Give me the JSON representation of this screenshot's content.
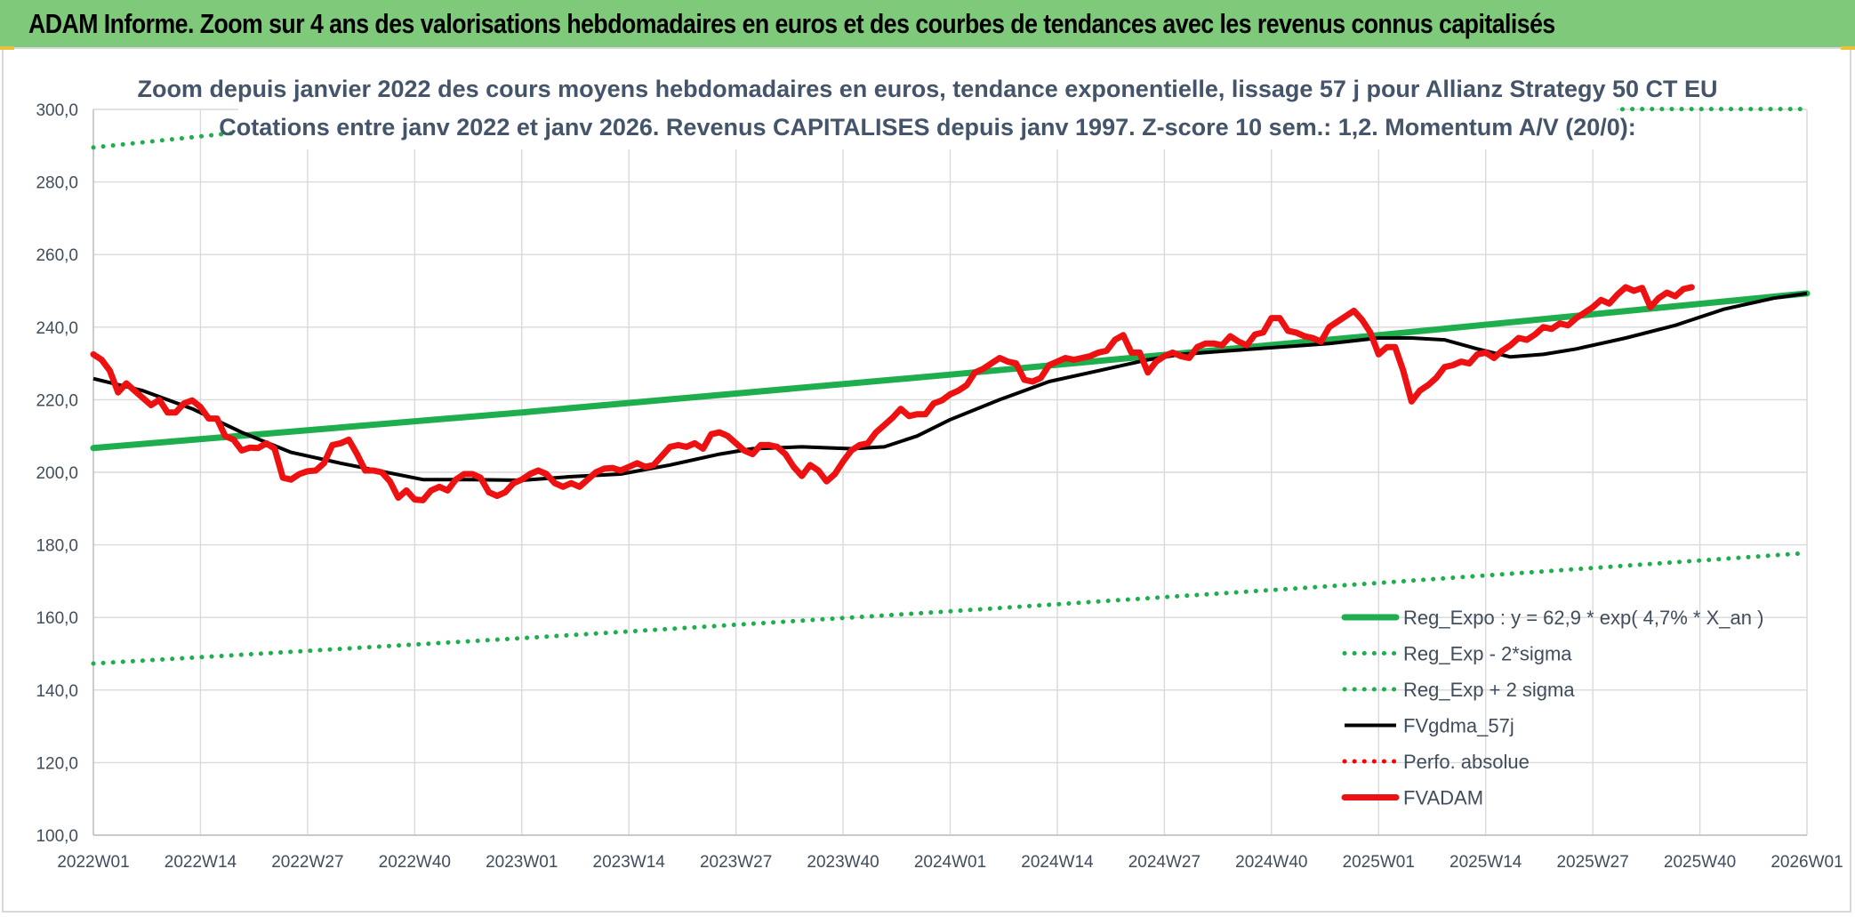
{
  "header": {
    "title": "ADAM Informe. Zoom sur 4 ans des valorisations hebdomadaires en euros et des courbes de tendances avec les revenus connus capitalisés"
  },
  "chart_data": {
    "type": "line",
    "title": "Zoom depuis janvier 2022 des cours moyens hebdomadaires en euros, tendance exponentielle, lissage 57 j pour Allianz Strategy 50 CT EU",
    "subtitle": "Cotations entre janv 2022 et janv 2026. Revenus CAPITALISES depuis janv 1997. Z-score 10 sem.: 1,2. Momentum A/V (20/0):",
    "xlabel": "",
    "ylabel": "",
    "ylim": [
      100,
      300
    ],
    "yticks": [
      "100,0",
      "120,0",
      "140,0",
      "160,0",
      "180,0",
      "200,0",
      "220,0",
      "240,0",
      "260,0",
      "280,0",
      "300,0"
    ],
    "x_range_weeks": [
      0,
      208
    ],
    "xticks": [
      {
        "label": "2022W01",
        "week": 0
      },
      {
        "label": "2022W14",
        "week": 13
      },
      {
        "label": "2022W27",
        "week": 26
      },
      {
        "label": "2022W40",
        "week": 39
      },
      {
        "label": "2023W01",
        "week": 52
      },
      {
        "label": "2023W14",
        "week": 65
      },
      {
        "label": "2023W27",
        "week": 78
      },
      {
        "label": "2023W40",
        "week": 91
      },
      {
        "label": "2024W01",
        "week": 104
      },
      {
        "label": "2024W14",
        "week": 117
      },
      {
        "label": "2024W27",
        "week": 130
      },
      {
        "label": "2024W40",
        "week": 143
      },
      {
        "label": "2025W01",
        "week": 156
      },
      {
        "label": "2025W14",
        "week": 169
      },
      {
        "label": "2025W27",
        "week": 182
      },
      {
        "label": "2025W40",
        "week": 195
      },
      {
        "label": "2026W01",
        "week": 208
      }
    ],
    "grid": true,
    "legend_position": "bottom-right",
    "series": [
      {
        "name": "Reg_Expo : y = 62,9 * exp( 4,7% *  X_an )",
        "color": "#1fae4e",
        "style": "solid-thick",
        "points": [
          [
            0,
            206.7
          ],
          [
            52,
            216.5
          ],
          [
            104,
            226.9
          ],
          [
            156,
            237.8
          ],
          [
            208,
            249.3
          ]
        ]
      },
      {
        "name": "Reg_Exp - 2*sigma",
        "color": "#1fae4e",
        "style": "dotted",
        "points": [
          [
            0,
            147.3
          ],
          [
            52,
            154.3
          ],
          [
            104,
            161.7
          ],
          [
            156,
            169.5
          ],
          [
            207,
            177.6
          ]
        ]
      },
      {
        "name": "Reg_Exp + 2 sigma",
        "color": "#1fae4e",
        "style": "dotted",
        "points": [
          [
            0,
            289.5
          ],
          [
            17,
            293.5
          ],
          [
            187,
            300.1
          ],
          [
            208,
            300.1
          ]
        ]
      },
      {
        "name": "FVgdma_57j",
        "color": "#000000",
        "style": "solid",
        "points": [
          [
            0,
            225.8
          ],
          [
            6,
            222.5
          ],
          [
            12,
            217.5
          ],
          [
            18,
            211.0
          ],
          [
            24,
            205.5
          ],
          [
            30,
            202.5
          ],
          [
            36,
            199.8
          ],
          [
            40,
            198.0
          ],
          [
            46,
            198.0
          ],
          [
            52,
            197.8
          ],
          [
            58,
            198.8
          ],
          [
            64,
            199.5
          ],
          [
            70,
            202.0
          ],
          [
            76,
            205.0
          ],
          [
            80,
            206.5
          ],
          [
            86,
            207.0
          ],
          [
            92,
            206.5
          ],
          [
            96,
            207.0
          ],
          [
            100,
            210.0
          ],
          [
            104,
            214.5
          ],
          [
            110,
            220.0
          ],
          [
            116,
            225.0
          ],
          [
            122,
            228.0
          ],
          [
            128,
            231.0
          ],
          [
            132,
            232.5
          ],
          [
            138,
            233.5
          ],
          [
            144,
            234.5
          ],
          [
            150,
            235.5
          ],
          [
            156,
            237.0
          ],
          [
            160,
            237.0
          ],
          [
            164,
            236.5
          ],
          [
            168,
            234.0
          ],
          [
            172,
            231.8
          ],
          [
            176,
            232.5
          ],
          [
            180,
            234.0
          ],
          [
            186,
            237.0
          ],
          [
            192,
            240.5
          ],
          [
            198,
            245.0
          ],
          [
            204,
            248.0
          ],
          [
            208,
            249.3
          ]
        ]
      },
      {
        "name": "Perfo. absolue",
        "color": "#ff0000",
        "style": "dotted",
        "points": []
      },
      {
        "name": "FVADAM",
        "color": "#ee1111",
        "style": "solid-thick",
        "points": [
          [
            0,
            232.5
          ],
          [
            1,
            231.0
          ],
          [
            2,
            228.0
          ],
          [
            3,
            222.0
          ],
          [
            4,
            224.5
          ],
          [
            5,
            222.5
          ],
          [
            6,
            220.5
          ],
          [
            7,
            218.5
          ],
          [
            8,
            220.0
          ],
          [
            9,
            216.5
          ],
          [
            10,
            216.5
          ],
          [
            11,
            219.0
          ],
          [
            12,
            219.8
          ],
          [
            13,
            218.0
          ],
          [
            14,
            214.8
          ],
          [
            15,
            214.8
          ],
          [
            16,
            210.0
          ],
          [
            17,
            209.0
          ],
          [
            18,
            206.0
          ],
          [
            19,
            206.8
          ],
          [
            20,
            206.7
          ],
          [
            21,
            208.0
          ],
          [
            22,
            206.5
          ],
          [
            23,
            198.5
          ],
          [
            24,
            198.0
          ],
          [
            25,
            199.5
          ],
          [
            26,
            200.3
          ],
          [
            27,
            200.5
          ],
          [
            28,
            202.5
          ],
          [
            29,
            207.5
          ],
          [
            30,
            208.0
          ],
          [
            31,
            209.0
          ],
          [
            32,
            205.0
          ],
          [
            33,
            200.5
          ],
          [
            34,
            200.5
          ],
          [
            35,
            200.0
          ],
          [
            36,
            197.5
          ],
          [
            37,
            193.0
          ],
          [
            38,
            195.0
          ],
          [
            39,
            192.5
          ],
          [
            40,
            192.3
          ],
          [
            41,
            195.0
          ],
          [
            42,
            196.0
          ],
          [
            43,
            195.0
          ],
          [
            44,
            198.0
          ],
          [
            45,
            199.5
          ],
          [
            46,
            199.5
          ],
          [
            47,
            198.5
          ],
          [
            48,
            194.5
          ],
          [
            49,
            193.5
          ],
          [
            50,
            194.5
          ],
          [
            51,
            197.0
          ],
          [
            52,
            198.0
          ],
          [
            53,
            199.5
          ],
          [
            54,
            200.5
          ],
          [
            55,
            199.5
          ],
          [
            56,
            197.0
          ],
          [
            57,
            196.0
          ],
          [
            58,
            197.0
          ],
          [
            59,
            196.0
          ],
          [
            60,
            198.0
          ],
          [
            61,
            200.0
          ],
          [
            62,
            201.0
          ],
          [
            63,
            201.2
          ],
          [
            64,
            200.5
          ],
          [
            65,
            201.5
          ],
          [
            66,
            202.5
          ],
          [
            67,
            201.5
          ],
          [
            68,
            202.0
          ],
          [
            69,
            204.5
          ],
          [
            70,
            207.0
          ],
          [
            71,
            207.5
          ],
          [
            72,
            207.0
          ],
          [
            73,
            208.0
          ],
          [
            74,
            206.5
          ],
          [
            75,
            210.5
          ],
          [
            76,
            211.0
          ],
          [
            77,
            210.0
          ],
          [
            78,
            208.0
          ],
          [
            79,
            206.0
          ],
          [
            80,
            205.0
          ],
          [
            81,
            207.5
          ],
          [
            82,
            207.5
          ],
          [
            83,
            207.0
          ],
          [
            84,
            205.0
          ],
          [
            85,
            201.5
          ],
          [
            86,
            199.0
          ],
          [
            87,
            202.0
          ],
          [
            88,
            200.5
          ],
          [
            89,
            197.5
          ],
          [
            90,
            199.5
          ],
          [
            91,
            203.0
          ],
          [
            92,
            206.0
          ],
          [
            93,
            207.5
          ],
          [
            94,
            208.0
          ],
          [
            95,
            211.0
          ],
          [
            96,
            213.0
          ],
          [
            97,
            215.0
          ],
          [
            98,
            217.5
          ],
          [
            99,
            215.5
          ],
          [
            100,
            216.0
          ],
          [
            101,
            216.0
          ],
          [
            102,
            219.0
          ],
          [
            103,
            219.8
          ],
          [
            104,
            221.5
          ],
          [
            105,
            222.5
          ],
          [
            106,
            224.0
          ],
          [
            107,
            227.5
          ],
          [
            108,
            228.5
          ],
          [
            109,
            230.0
          ],
          [
            110,
            231.5
          ],
          [
            111,
            230.5
          ],
          [
            112,
            230.0
          ],
          [
            113,
            225.5
          ],
          [
            114,
            225.0
          ],
          [
            115,
            226.0
          ],
          [
            116,
            229.5
          ],
          [
            117,
            230.5
          ],
          [
            118,
            231.5
          ],
          [
            119,
            231.0
          ],
          [
            120,
            231.5
          ],
          [
            121,
            232.0
          ],
          [
            122,
            233.0
          ],
          [
            123,
            233.5
          ],
          [
            124,
            236.5
          ],
          [
            125,
            237.8
          ],
          [
            126,
            233.0
          ],
          [
            127,
            233.0
          ],
          [
            128,
            227.5
          ],
          [
            129,
            230.5
          ],
          [
            130,
            232.0
          ],
          [
            131,
            233.0
          ],
          [
            132,
            232.0
          ],
          [
            133,
            231.5
          ],
          [
            134,
            234.5
          ],
          [
            135,
            235.5
          ],
          [
            136,
            235.5
          ],
          [
            137,
            235.0
          ],
          [
            138,
            237.5
          ],
          [
            139,
            236.0
          ],
          [
            140,
            235.0
          ],
          [
            141,
            238.0
          ],
          [
            142,
            238.5
          ],
          [
            143,
            242.5
          ],
          [
            144,
            242.5
          ],
          [
            145,
            239.0
          ],
          [
            146,
            238.5
          ],
          [
            147,
            237.5
          ],
          [
            148,
            237.0
          ],
          [
            149,
            236.0
          ],
          [
            150,
            240.0
          ],
          [
            151,
            241.5
          ],
          [
            152,
            243.0
          ],
          [
            153,
            244.5
          ],
          [
            154,
            242.0
          ],
          [
            155,
            238.5
          ],
          [
            156,
            232.5
          ],
          [
            157,
            234.5
          ],
          [
            158,
            234.5
          ],
          [
            159,
            228.0
          ],
          [
            160,
            219.5
          ],
          [
            161,
            222.5
          ],
          [
            162,
            224.0
          ],
          [
            163,
            226.0
          ],
          [
            164,
            229.0
          ],
          [
            165,
            229.5
          ],
          [
            166,
            230.5
          ],
          [
            167,
            230.0
          ],
          [
            168,
            232.5
          ],
          [
            169,
            233.0
          ],
          [
            170,
            231.5
          ],
          [
            171,
            233.5
          ],
          [
            172,
            235.0
          ],
          [
            173,
            237.0
          ],
          [
            174,
            236.5
          ],
          [
            175,
            238.0
          ],
          [
            176,
            240.0
          ],
          [
            177,
            239.5
          ],
          [
            178,
            241.0
          ],
          [
            179,
            240.5
          ],
          [
            180,
            242.5
          ],
          [
            181,
            244.0
          ],
          [
            182,
            245.5
          ],
          [
            183,
            247.5
          ],
          [
            184,
            246.5
          ],
          [
            185,
            249.0
          ],
          [
            186,
            251.0
          ],
          [
            187,
            250.0
          ],
          [
            188,
            250.8
          ],
          [
            189,
            245.5
          ],
          [
            190,
            248.0
          ],
          [
            191,
            249.5
          ],
          [
            192,
            248.5
          ],
          [
            193,
            250.5
          ],
          [
            194,
            251.0
          ]
        ]
      }
    ]
  }
}
